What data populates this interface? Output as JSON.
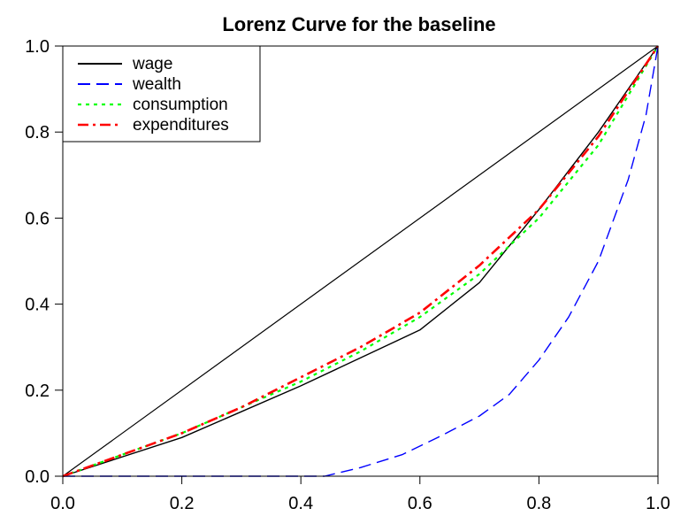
{
  "chart_data": {
    "type": "line",
    "title": "Lorenz Curve for the baseline",
    "xlabel": "",
    "ylabel": "",
    "xlim": [
      0,
      1
    ],
    "ylim": [
      0,
      1
    ],
    "x_ticks": [
      "0.0",
      "0.2",
      "0.4",
      "0.6",
      "0.8",
      "1.0"
    ],
    "y_ticks": [
      "0.0",
      "0.2",
      "0.4",
      "0.6",
      "0.8",
      "1.0"
    ],
    "grid": false,
    "legend_position": "top-left",
    "reference_line": {
      "x": [
        0,
        1
      ],
      "y": [
        0,
        1
      ],
      "color": "#000000"
    },
    "series": [
      {
        "name": "wage",
        "color": "#000000",
        "dash": "solid",
        "x": [
          0,
          0.2,
          0.4,
          0.6,
          0.7,
          0.8,
          0.9,
          1.0
        ],
        "y": [
          0,
          0.09,
          0.21,
          0.34,
          0.45,
          0.62,
          0.8,
          1.0
        ]
      },
      {
        "name": "wealth",
        "color": "#0000ff",
        "dash": "dashed",
        "x": [
          0,
          0.44,
          0.5,
          0.57,
          0.63,
          0.7,
          0.75,
          0.8,
          0.85,
          0.9,
          0.95,
          0.98,
          1.0
        ],
        "y": [
          0,
          0,
          0.02,
          0.05,
          0.09,
          0.14,
          0.19,
          0.27,
          0.37,
          0.5,
          0.69,
          0.84,
          1.0
        ]
      },
      {
        "name": "consumption",
        "color": "#00ff00",
        "dash": "dotted",
        "x": [
          0,
          0.1,
          0.2,
          0.3,
          0.4,
          0.5,
          0.6,
          0.7,
          0.8,
          0.9,
          1.0
        ],
        "y": [
          0,
          0.05,
          0.1,
          0.16,
          0.22,
          0.29,
          0.37,
          0.47,
          0.6,
          0.77,
          1.0
        ]
      },
      {
        "name": "expenditures",
        "color": "#ff0000",
        "dash": "dashdot",
        "x": [
          0,
          0.1,
          0.2,
          0.3,
          0.4,
          0.5,
          0.6,
          0.7,
          0.8,
          0.9,
          1.0
        ],
        "y": [
          0,
          0.05,
          0.1,
          0.16,
          0.23,
          0.3,
          0.38,
          0.49,
          0.62,
          0.79,
          1.0
        ]
      }
    ]
  }
}
